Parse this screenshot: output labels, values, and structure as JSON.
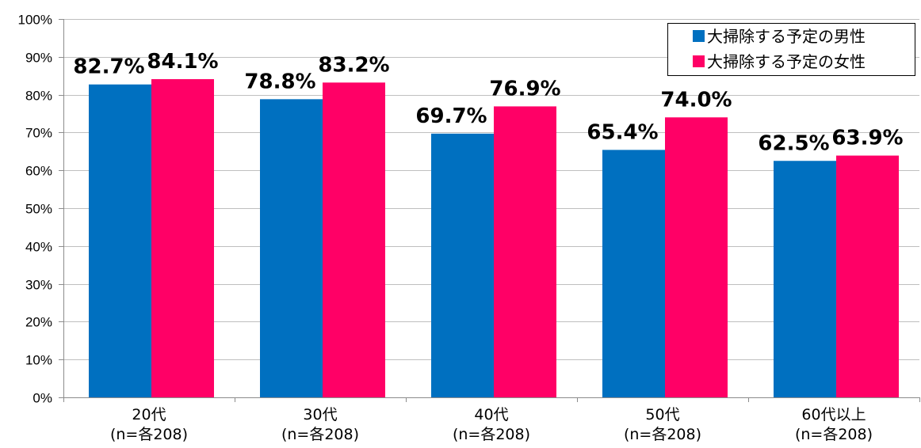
{
  "chart_data": {
    "type": "bar",
    "categories": [
      [
        "20代",
        "(n=各208)"
      ],
      [
        "30代",
        "(n=各208)"
      ],
      [
        "40代",
        "(n=各208)"
      ],
      [
        "50代",
        "(n=各208)"
      ],
      [
        "60代以上",
        "(n=各208)"
      ]
    ],
    "series": [
      {
        "name": "大掃除する予定の男性",
        "color": "#0070c0",
        "values": [
          82.7,
          78.8,
          69.7,
          65.4,
          62.5
        ],
        "labels": [
          "82.7%",
          "78.8%",
          "69.7%",
          "65.4%",
          "62.5%"
        ]
      },
      {
        "name": "大掃除する予定の女性",
        "color": "#ff0066",
        "values": [
          84.1,
          83.2,
          76.9,
          74.0,
          63.9
        ],
        "labels": [
          "84.1%",
          "83.2%",
          "76.9%",
          "74.0%",
          "63.9%"
        ]
      }
    ],
    "y_ticks": [
      "0%",
      "10%",
      "20%",
      "30%",
      "40%",
      "50%",
      "60%",
      "70%",
      "80%",
      "90%",
      "100%"
    ],
    "ylim": [
      0,
      100
    ],
    "grid": true,
    "legend_position": "top-right"
  }
}
